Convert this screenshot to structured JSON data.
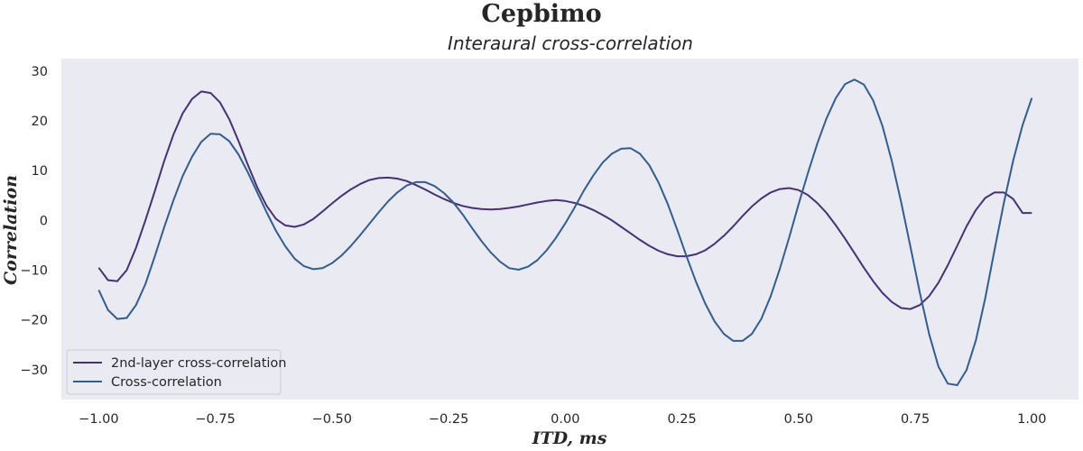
{
  "chart_data": {
    "type": "line",
    "suptitle": "Cepbimo",
    "title": "Interaural cross-correlation",
    "xlabel": "ITD, ms",
    "ylabel": "Correlation",
    "xlim": [
      -1.08,
      1.1
    ],
    "ylim": [
      -36,
      32.5
    ],
    "grid": false,
    "background_color": "#eaeaf2",
    "legend_position": "lower-left",
    "x_ticks": [
      -1.0,
      -0.75,
      -0.5,
      -0.25,
      0.0,
      0.25,
      0.5,
      0.75,
      1.0
    ],
    "x_tick_labels": [
      "−1.00",
      "−0.75",
      "−0.50",
      "−0.25",
      "0.00",
      "0.25",
      "0.50",
      "0.75",
      "1.00"
    ],
    "y_ticks": [
      -30,
      -20,
      -10,
      0,
      10,
      20,
      30
    ],
    "y_tick_labels": [
      "−30",
      "−20",
      "−10",
      "0",
      "10",
      "20",
      "30"
    ],
    "x": [
      -1.0,
      -0.98,
      -0.96,
      -0.94,
      -0.92,
      -0.9,
      -0.88,
      -0.86,
      -0.84,
      -0.82,
      -0.8,
      -0.78,
      -0.76,
      -0.74,
      -0.72,
      -0.7,
      -0.68,
      -0.66,
      -0.64,
      -0.62,
      -0.6,
      -0.58,
      -0.56,
      -0.54,
      -0.52,
      -0.5,
      -0.48,
      -0.46,
      -0.44,
      -0.42,
      -0.4,
      -0.38,
      -0.36,
      -0.34,
      -0.32,
      -0.3,
      -0.28,
      -0.26,
      -0.24,
      -0.22,
      -0.2,
      -0.18,
      -0.16,
      -0.14,
      -0.12,
      -0.1,
      -0.08,
      -0.06,
      -0.04,
      -0.02,
      0.0,
      0.02,
      0.04,
      0.06,
      0.08,
      0.1,
      0.12,
      0.14,
      0.16,
      0.18,
      0.2,
      0.22,
      0.24,
      0.26,
      0.28,
      0.3,
      0.32,
      0.34,
      0.36,
      0.38,
      0.4,
      0.42,
      0.44,
      0.46,
      0.48,
      0.5,
      0.52,
      0.54,
      0.56,
      0.58,
      0.6,
      0.62,
      0.64,
      0.66,
      0.68,
      0.7,
      0.72,
      0.74,
      0.76,
      0.78,
      0.8,
      0.82,
      0.84,
      0.86,
      0.88,
      0.9,
      0.92,
      0.94,
      0.96,
      0.98,
      1.0
    ],
    "series": [
      {
        "name": "2nd-layer cross-correlation",
        "color": "#47307a",
        "values": [
          -9.5,
          -12.0,
          -12.2,
          -10.0,
          -5.5,
          0.0,
          5.8,
          11.8,
          17.2,
          21.5,
          24.4,
          25.9,
          25.6,
          23.7,
          20.3,
          15.9,
          11.1,
          6.6,
          2.9,
          0.3,
          -1.0,
          -1.3,
          -0.8,
          0.3,
          1.8,
          3.4,
          4.9,
          6.2,
          7.3,
          8.1,
          8.5,
          8.6,
          8.4,
          7.9,
          7.1,
          6.2,
          5.2,
          4.3,
          3.5,
          2.9,
          2.5,
          2.3,
          2.2,
          2.3,
          2.5,
          2.8,
          3.2,
          3.6,
          3.9,
          4.1,
          3.9,
          3.5,
          2.9,
          2.1,
          1.1,
          0.0,
          -1.3,
          -2.6,
          -3.9,
          -5.1,
          -6.1,
          -6.8,
          -7.2,
          -7.2,
          -6.8,
          -6.0,
          -4.7,
          -3.1,
          -1.2,
          0.9,
          2.8,
          4.4,
          5.6,
          6.3,
          6.5,
          6.1,
          5.1,
          3.5,
          1.5,
          -1.0,
          -3.7,
          -6.6,
          -9.5,
          -12.2,
          -14.6,
          -16.4,
          -17.6,
          -17.8,
          -17.0,
          -15.2,
          -12.5,
          -9.0,
          -5.1,
          -1.2,
          2.1,
          4.5,
          5.6,
          5.6,
          4.3,
          1.5,
          null
        ],
        "values_note": ""
      }
    ]
  },
  "legend": {
    "items": [
      {
        "label": "2nd-layer cross-correlation",
        "color": "#47307a"
      },
      {
        "label": "Cross-correlation",
        "color": "#2f5e93"
      }
    ]
  }
}
